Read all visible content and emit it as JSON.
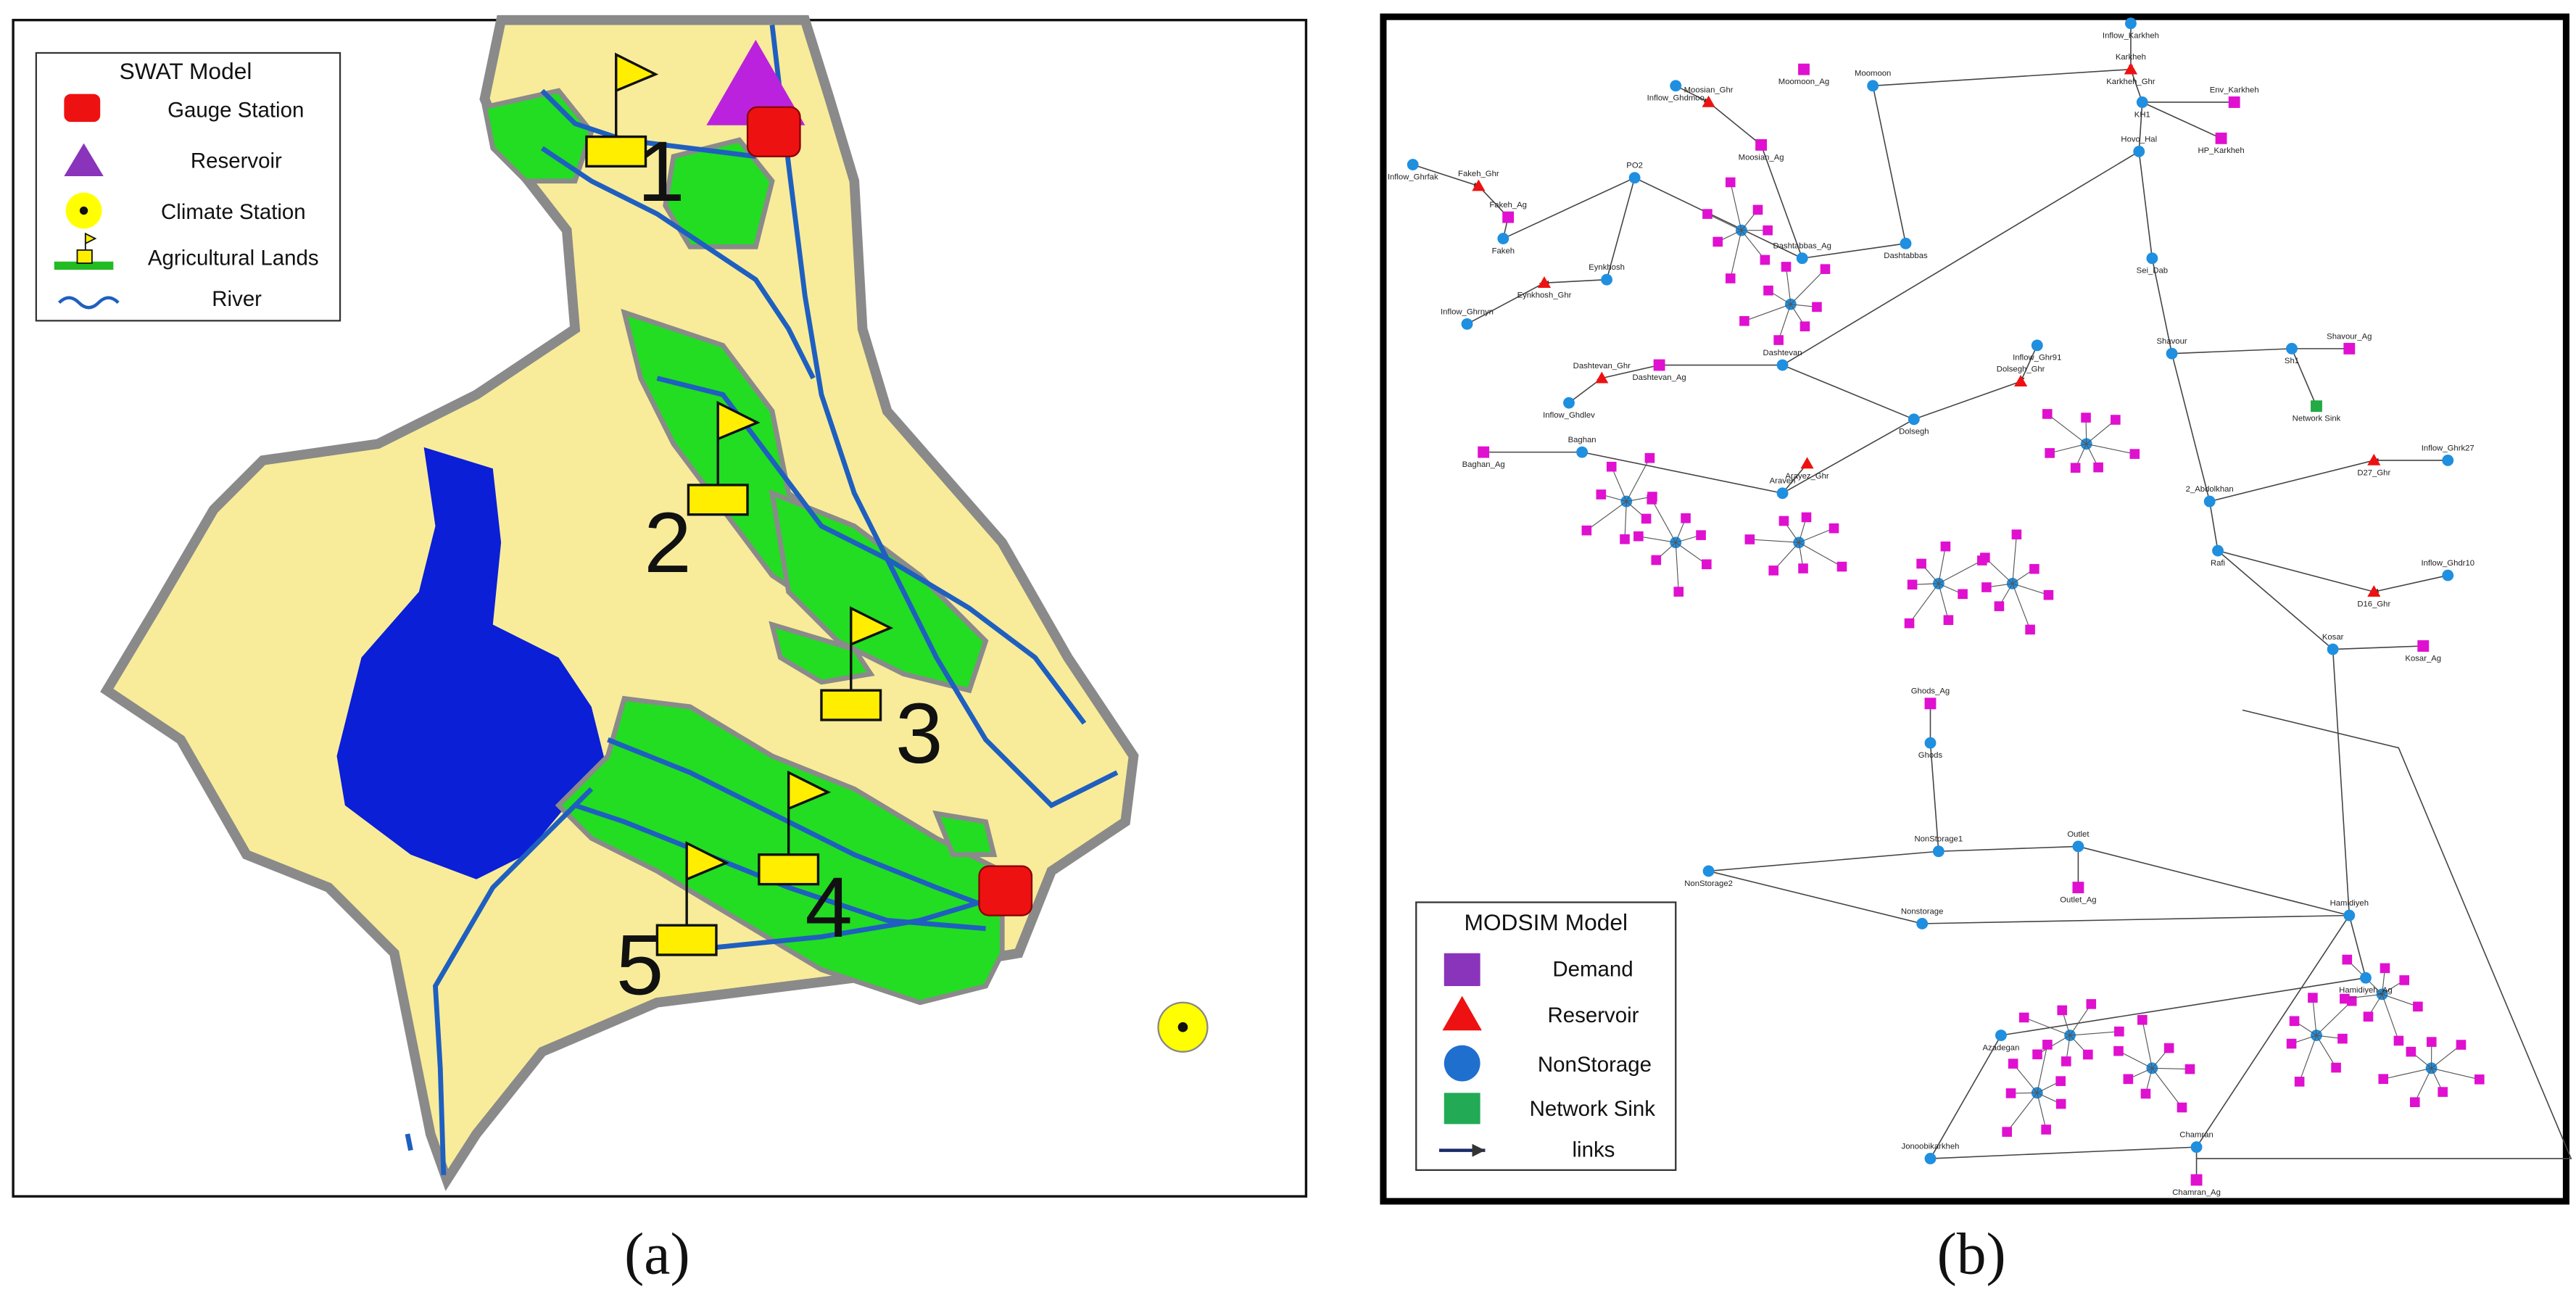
{
  "panel_a": {
    "label": "(a)",
    "legend": {
      "title": "SWAT Model",
      "items": [
        "Gauge Station",
        "Reservoir",
        "Climate Station",
        "Agricultural Lands",
        "River"
      ]
    },
    "subbasins": [
      "1",
      "2",
      "3",
      "4",
      "5"
    ]
  },
  "panel_b": {
    "label": "(b)",
    "legend": {
      "title": "MODSIM Model",
      "items": [
        "Demand",
        "Reservoir",
        "NonStorage",
        "Network Sink",
        "links"
      ]
    },
    "nodes": [
      {
        "label": "Inflow_Karkheh"
      },
      {
        "label": "Karkheh"
      },
      {
        "label": "KH1"
      },
      {
        "label": "Env_Karkheh"
      },
      {
        "label": "HP_Karkheh"
      },
      {
        "label": "Hovo_Hal"
      },
      {
        "label": "Sei_Dab"
      },
      {
        "label": "Shavour"
      },
      {
        "label": "Sh1"
      },
      {
        "label": "Shavour_Ag"
      },
      {
        "label": "Network Sink"
      },
      {
        "label": "2_Abdolkhan"
      },
      {
        "label": "Rafi"
      },
      {
        "label": "Inflow_Ghdr10"
      },
      {
        "label": "D16_Ghr"
      },
      {
        "label": "Kosar"
      },
      {
        "label": "Kosar_Ag"
      },
      {
        "label": "Hamidiyeh"
      },
      {
        "label": "Hamidiyeh_Ag"
      },
      {
        "label": "Chamran"
      },
      {
        "label": "Chamran_Ag"
      },
      {
        "label": "Jonoobikarkheh"
      },
      {
        "label": "Azadegan"
      },
      {
        "label": "Outlet"
      },
      {
        "label": "Outlet_Ag"
      },
      {
        "label": "NonStorage1"
      },
      {
        "label": "NonStorage2"
      },
      {
        "label": "Nonstorage"
      },
      {
        "label": "Ghods"
      },
      {
        "label": "Ghods_Ag"
      },
      {
        "label": "Dolsegh"
      },
      {
        "label": "Dolsegh_Ghr"
      },
      {
        "label": "Inflow_Ghr91"
      },
      {
        "label": "Araveh"
      },
      {
        "label": "Arayez_Ghr"
      },
      {
        "label": "Baghan"
      },
      {
        "label": "Baghan_Ag"
      },
      {
        "label": "Dashtevan"
      },
      {
        "label": "Dashtevan_Ag"
      },
      {
        "label": "Dashtevan_Ghr"
      },
      {
        "label": "Inflow_Ghdlev"
      },
      {
        "label": "Eynkhosh"
      },
      {
        "label": "Eynkhosh_Ghr"
      },
      {
        "label": "Inflow_Ghrnyn"
      },
      {
        "label": "Dashtabbas"
      },
      {
        "label": "Dashtabbas_Ag"
      },
      {
        "label": "Moosian_Ag"
      },
      {
        "label": "Moosian_Ghr"
      },
      {
        "label": "Inflow_Ghdmoo"
      },
      {
        "label": "Moomoon"
      },
      {
        "label": "Moomoon_Ag"
      },
      {
        "label": "PO2"
      },
      {
        "label": "Fakeh"
      },
      {
        "label": "Fakeh_Ag"
      },
      {
        "label": "Inflow_Ghrfak"
      },
      {
        "label": "Fakeh_Ghr"
      },
      {
        "label": "Karkheh_Ghr"
      },
      {
        "label": "Inflow_Ghrk27"
      },
      {
        "label": "D27_Ghr"
      }
    ]
  }
}
